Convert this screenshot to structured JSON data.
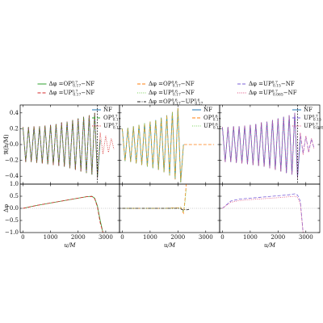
{
  "chart_data": [
    {
      "type": "line",
      "ylabel": "ℜ(h/M)",
      "legend": "upper right",
      "vline": 2700,
      "x": [
        0,
        100,
        200,
        300,
        400,
        500,
        600,
        700,
        800,
        900,
        1000,
        1100,
        1200,
        1300,
        1400,
        1500,
        1600,
        1700,
        1800,
        1900,
        2000,
        2100,
        2200,
        2300,
        2400,
        2500,
        2600,
        2700,
        2800,
        2900,
        3000,
        3100,
        3200,
        3300
      ],
      "series": [
        {
          "name": "NF",
          "color": "#1f77b4",
          "dash": "solid",
          "values": [
            0.22,
            -0.22,
            0.22,
            -0.22,
            0.23,
            -0.23,
            0.23,
            -0.24,
            0.24,
            -0.25,
            0.25,
            -0.26,
            0.26,
            -0.27,
            0.28,
            -0.28,
            0.29,
            -0.3,
            0.31,
            -0.32,
            0.33,
            -0.34,
            0.35,
            -0.36,
            0.37,
            -0.38,
            0.4,
            -0.42,
            0.05,
            null,
            null,
            null,
            null,
            null
          ]
        },
        {
          "name": "OP^{0.7}_{0.17}",
          "color": "#2ca02c",
          "dash": "dashed",
          "values": [
            0.22,
            -0.22,
            0.22,
            -0.22,
            0.23,
            -0.23,
            0.23,
            -0.24,
            0.24,
            -0.25,
            0.25,
            -0.26,
            0.26,
            -0.27,
            0.28,
            -0.28,
            0.29,
            -0.3,
            0.31,
            -0.32,
            0.33,
            -0.34,
            0.35,
            -0.36,
            0.37,
            -0.38,
            0.4,
            -0.41,
            0.06,
            null,
            null,
            null,
            null,
            null
          ]
        },
        {
          "name": "UP^{0.7}_{0.17}",
          "color": "#d62728",
          "dash": "dotted",
          "values": [
            0.22,
            -0.22,
            0.22,
            -0.22,
            0.23,
            -0.23,
            0.23,
            -0.24,
            0.24,
            -0.25,
            0.25,
            -0.26,
            0.26,
            -0.27,
            0.28,
            -0.28,
            0.29,
            -0.3,
            0.31,
            -0.32,
            0.33,
            -0.34,
            0.35,
            -0.36,
            0.37,
            -0.38,
            0.4,
            -0.42,
            0.15,
            -0.12,
            0.11,
            -0.1,
            0.08,
            -0.06
          ]
        }
      ],
      "xlim": [
        -100,
        3500
      ],
      "ylim": [
        -0.5,
        0.5
      ],
      "xticks": [
        0,
        1000,
        2000,
        3000
      ],
      "yticks": [
        {
          "value": -0.4,
          "label": "−0.4"
        },
        {
          "value": -0.2,
          "label": "−0.2"
        },
        {
          "value": 0,
          "label": "0.0"
        },
        0.2,
        0.4
      ]
    },
    {
      "type": "line",
      "ylabel": "Δφ",
      "xlabel": "u/M",
      "legend": "above",
      "zero_line": true,
      "x": [
        0,
        500,
        1000,
        1500,
        2000,
        2300,
        2500,
        2600,
        2700,
        2800,
        2900
      ],
      "series": [
        {
          "name": "Δφ =OP^{0.7}_{0.17}−NF",
          "color": "#2ca02c",
          "dash": "solid",
          "values": [
            0,
            0.12,
            0.22,
            0.32,
            0.42,
            0.48,
            0.5,
            0.42,
            0.1,
            -0.5,
            -1.0
          ]
        },
        {
          "name": "Δφ =UP^{0.7}_{0.17}−NF",
          "color": "#d62728",
          "dash": "dashed",
          "values": [
            0,
            0.12,
            0.22,
            0.32,
            0.42,
            0.48,
            0.49,
            0.4,
            0.05,
            -0.6,
            -1.0
          ]
        }
      ],
      "xlim": [
        -100,
        3500
      ],
      "ylim": [
        -1,
        1
      ],
      "xticks": [
        0,
        1000,
        2000,
        3000
      ],
      "yticks": [
        {
          "value": -1,
          "label": "−1.0"
        },
        {
          "value": -0.5,
          "label": "−0.5"
        },
        {
          "value": 0,
          "label": "0.0"
        },
        0.5,
        {
          "value": 1,
          "label": "1.0"
        }
      ]
    },
    {
      "type": "line",
      "legend": "upper right",
      "x": [
        0,
        100,
        200,
        300,
        400,
        500,
        600,
        700,
        800,
        900,
        1000,
        1100,
        1200,
        1300,
        1400,
        1500,
        1600,
        1700,
        1800,
        1900,
        2000,
        2100,
        2200,
        2300,
        2400,
        2500,
        2600,
        2700,
        2800,
        2900,
        3000,
        3100,
        3200,
        3300
      ],
      "series": [
        {
          "name": "NF",
          "color": "#1f77b4",
          "dash": "solid",
          "values": [
            0.2,
            -0.21,
            0.21,
            -0.22,
            0.23,
            -0.24,
            0.25,
            -0.26,
            0.27,
            -0.28,
            0.29,
            -0.3,
            0.31,
            -0.32,
            0.34,
            -0.35,
            0.37,
            -0.39,
            0.41,
            -0.44,
            0.46,
            -0.48,
            0,
            null,
            null,
            null,
            null,
            null,
            null,
            null,
            null,
            null,
            null,
            null
          ]
        },
        {
          "name": "OP^{0.6}_{0.17}",
          "color": "#ff7f0e",
          "dash": "dashed",
          "values": [
            0.2,
            -0.21,
            0.21,
            -0.22,
            0.23,
            -0.24,
            0.25,
            -0.26,
            0.27,
            -0.28,
            0.29,
            -0.3,
            0.31,
            -0.32,
            0.34,
            -0.35,
            0.37,
            -0.39,
            0.41,
            -0.44,
            0.46,
            -0.47,
            0,
            0,
            0,
            0,
            0,
            0,
            0,
            0,
            0,
            0,
            0,
            0
          ]
        },
        {
          "name": "UP^{0.6}_{0.17}",
          "color": "#7fd35f",
          "dash": "dotted",
          "values": [
            0.2,
            -0.21,
            0.21,
            -0.22,
            0.23,
            -0.24,
            0.25,
            -0.26,
            0.27,
            -0.28,
            0.29,
            -0.3,
            0.31,
            -0.32,
            0.34,
            -0.35,
            0.37,
            -0.39,
            0.41,
            -0.43,
            0.46,
            -0.48,
            0,
            null,
            null,
            null,
            null,
            null,
            null,
            null,
            null,
            null,
            null,
            null
          ]
        }
      ],
      "xlim": [
        -100,
        3500
      ],
      "ylim": [
        -0.5,
        0.5
      ],
      "xticks": [
        0,
        1000,
        2000,
        3000
      ],
      "yticks": [
        {
          "value": -0.4,
          "label": "−0.4"
        },
        {
          "value": -0.2,
          "label": "−0.2"
        },
        {
          "value": 0,
          "label": "0.0"
        },
        0.2,
        0.4
      ]
    },
    {
      "type": "line",
      "xlabel": "u/M",
      "legend": "above",
      "zero_line": true,
      "x": [
        0,
        500,
        1000,
        1500,
        2000,
        2100,
        2200,
        2250,
        2300,
        2400,
        2500
      ],
      "series": [
        {
          "name": "Δφ =OP^{0.6}_{0.17}−NF",
          "color": "#ff7f0e",
          "dash": "dashed",
          "values": [
            0,
            0,
            0,
            0,
            0.02,
            0.05,
            -0.2,
            0.3,
            1.0,
            null,
            null
          ]
        },
        {
          "name": "Δφ =UP^{0.6}_{0.17}−NF",
          "color": "#7fd35f",
          "dash": "dotted",
          "values": [
            0,
            0,
            0,
            0,
            0.01,
            0.03,
            -0.15,
            0.2,
            0.8,
            null,
            null
          ]
        },
        {
          "name": "Δφ =OP^{0.6}_{0.17}−UP^{0.6}_{0.17}",
          "color": "#222222",
          "dash": "dashdot",
          "values": [
            0,
            0,
            0,
            0,
            0,
            -0.02,
            -0.08,
            -0.05,
            -0.06,
            -0.05,
            null
          ]
        }
      ],
      "xlim": [
        -100,
        3500
      ],
      "ylim": [
        -1,
        1
      ],
      "xticks": [
        0,
        1000,
        2000,
        3000
      ],
      "yticks": [
        {
          "value": -1,
          "label": "−1.0"
        },
        {
          "value": -0.5,
          "label": "−0.5"
        },
        {
          "value": 0,
          "label": "0.0"
        },
        0.5,
        {
          "value": 1,
          "label": "1.0"
        }
      ]
    },
    {
      "type": "line",
      "legend": "upper right",
      "vline": 2700,
      "x": [
        0,
        100,
        200,
        300,
        400,
        500,
        600,
        700,
        800,
        900,
        1000,
        1100,
        1200,
        1300,
        1400,
        1500,
        1600,
        1700,
        1800,
        1900,
        2000,
        2100,
        2200,
        2300,
        2400,
        2500,
        2600,
        2700,
        2800,
        2900,
        3000,
        3100,
        3200,
        3300
      ],
      "series": [
        {
          "name": "NF",
          "color": "#1f77b4",
          "dash": "solid",
          "values": [
            0.22,
            -0.22,
            0.22,
            -0.22,
            0.23,
            -0.23,
            0.23,
            -0.24,
            0.24,
            -0.25,
            0.25,
            -0.26,
            0.26,
            -0.27,
            0.28,
            -0.28,
            0.29,
            -0.3,
            0.31,
            -0.32,
            0.33,
            -0.34,
            0.35,
            -0.36,
            0.37,
            -0.38,
            0.4,
            -0.42,
            0.05,
            null,
            null,
            null,
            null,
            null
          ]
        },
        {
          "name": "UP^{0.7}_{0.15}",
          "color": "#7b61d9",
          "dash": "dashed",
          "values": [
            0.22,
            -0.22,
            0.22,
            -0.22,
            0.23,
            -0.23,
            0.23,
            -0.24,
            0.24,
            -0.25,
            0.25,
            -0.26,
            0.26,
            -0.27,
            0.28,
            -0.28,
            0.29,
            -0.3,
            0.31,
            -0.32,
            0.33,
            -0.34,
            0.35,
            -0.36,
            0.37,
            -0.38,
            0.4,
            -0.41,
            0.14,
            -0.11,
            0.1,
            -0.09,
            0.07,
            -0.05
          ]
        },
        {
          "name": "UP^{0.7}_{0.065}",
          "color": "#e05080",
          "dash": "dotted",
          "values": [
            0.22,
            -0.22,
            0.22,
            -0.22,
            0.23,
            -0.23,
            0.23,
            -0.24,
            0.24,
            -0.25,
            0.25,
            -0.26,
            0.26,
            -0.27,
            0.28,
            -0.28,
            0.29,
            -0.3,
            0.31,
            -0.32,
            0.33,
            -0.34,
            0.35,
            -0.36,
            0.37,
            -0.38,
            0.4,
            -0.42,
            0.15,
            -0.13,
            0.11,
            -0.1,
            0.08,
            -0.06
          ]
        }
      ],
      "xlim": [
        -100,
        3500
      ],
      "ylim": [
        -0.5,
        0.5
      ],
      "xticks": [
        0,
        1000,
        2000,
        3000
      ],
      "yticks": [
        {
          "value": -0.4,
          "label": "−0.4"
        },
        {
          "value": -0.2,
          "label": "−0.2"
        },
        {
          "value": 0,
          "label": "0.0"
        },
        0.2,
        0.4
      ]
    },
    {
      "type": "line",
      "xlabel": "u/M",
      "legend": "above",
      "zero_line": true,
      "x": [
        0,
        300,
        600,
        1000,
        1500,
        2000,
        2400,
        2600,
        2700,
        2800,
        2900
      ],
      "series": [
        {
          "name": "Δφ =UP^{0.7}_{0.15}−NF",
          "color": "#7b61d9",
          "dash": "dashed",
          "values": [
            0,
            0.3,
            0.38,
            0.42,
            0.47,
            0.52,
            0.56,
            0.6,
            0.55,
            0.3,
            -1.0
          ]
        },
        {
          "name": "Δφ =UP^{0.7}_{0.065}−NF",
          "color": "#e05080",
          "dash": "dotted",
          "values": [
            0,
            0.25,
            0.32,
            0.36,
            0.4,
            0.44,
            0.48,
            0.5,
            0.45,
            0.2,
            -1.0
          ]
        }
      ],
      "xlim": [
        -100,
        3500
      ],
      "ylim": [
        -1,
        1
      ],
      "xticks": [
        0,
        1000,
        2000,
        3000
      ],
      "yticks": [
        {
          "value": -1,
          "label": "−1.0"
        },
        {
          "value": -0.5,
          "label": "−0.5"
        },
        {
          "value": 0,
          "label": "0.0"
        },
        0.5,
        {
          "value": 1,
          "label": "1.0"
        }
      ]
    }
  ]
}
